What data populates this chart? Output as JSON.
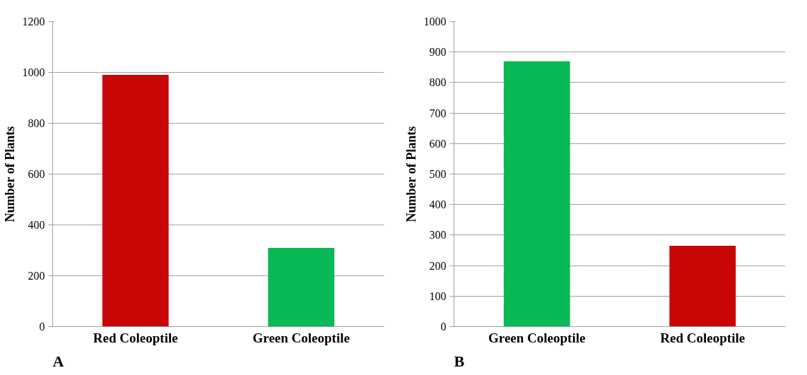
{
  "chart_data": [
    {
      "type": "bar",
      "categories": [
        "Red Coleoptile",
        "Green Coleoptile"
      ],
      "ylabel": "Number of Plants",
      "series": [
        {
          "colors": [
            "#c80606",
            "#09b856"
          ],
          "values": [
            990,
            310
          ]
        }
      ],
      "ylim": [
        0,
        1200
      ],
      "yticks": [
        0,
        200,
        400,
        600,
        800,
        1000,
        1200
      ],
      "grid": "y",
      "annotations": [
        "A"
      ]
    },
    {
      "type": "bar",
      "categories": [
        "Green Coleoptile",
        "Red Coleoptile"
      ],
      "ylabel": "Number of Plants",
      "series": [
        {
          "colors": [
            "#09b856",
            "#c80606"
          ],
          "values": [
            870,
            265
          ]
        }
      ],
      "ylim": [
        0,
        1000
      ],
      "yticks": [
        0,
        100,
        200,
        300,
        400,
        500,
        600,
        700,
        800,
        900,
        1000
      ],
      "grid": "y",
      "annotations": [
        "B"
      ]
    }
  ]
}
